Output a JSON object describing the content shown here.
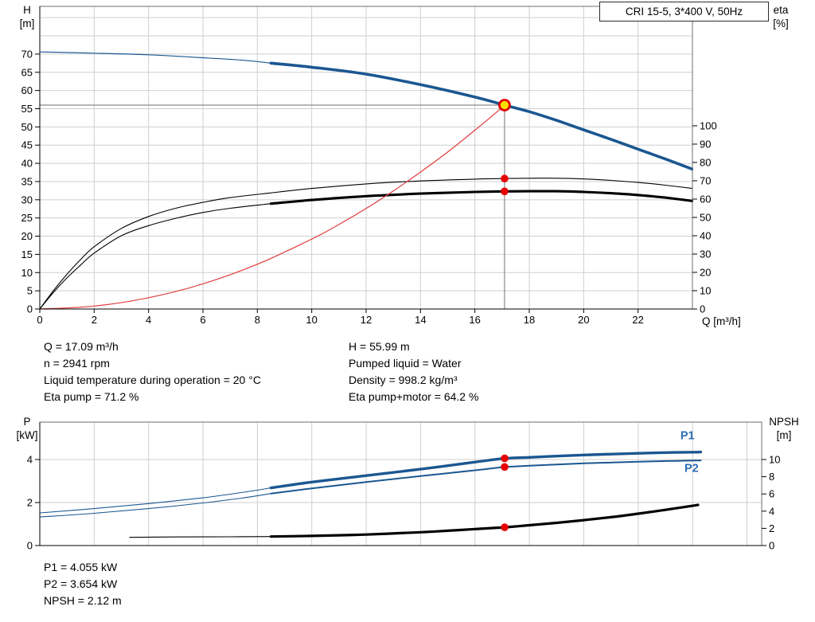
{
  "title_box": {
    "label": "CRI 15-5, 3*400 V, 50Hz"
  },
  "info_top_left": [
    "Q = 17.09 m³/h",
    "n = 2941 rpm",
    "Liquid temperature during operation = 20 °C",
    "Eta pump = 71.2 %"
  ],
  "info_top_right": [
    "H = 55.99 m",
    "Pumped liquid = Water",
    "Density = 998.2 kg/m³",
    "Eta pump+motor = 64.2 %"
  ],
  "info_bottom": [
    "P1 = 4.055 kW",
    "P2 = 3.654 kW",
    "NPSH = 2.12 m"
  ],
  "duty_point": {
    "q": 17.09,
    "h": 55.99,
    "eta_pump": 71.2,
    "eta_pump_motor": 64.2,
    "p1": 4.055,
    "p2": 3.654,
    "npsh": 2.12
  },
  "colors": {
    "curve_blue": "#1b5791",
    "label_blue": "#2e6db4",
    "curve_black": "#000000",
    "system_red": "#e03c3c",
    "dot_red": "#e60000",
    "duty_fill": "#ffdf00",
    "duty_ring": "#e00000",
    "grid": "#cfcfcf",
    "frame": "#6e6e6e",
    "crosshair": "#8a8a8a"
  },
  "chart_data": [
    {
      "id": "qh-eta",
      "type": "line",
      "x_axis": {
        "label": "Q [m³/h]",
        "min": 0,
        "max": 24,
        "ticks": [
          0,
          2,
          4,
          6,
          8,
          10,
          12,
          14,
          16,
          18,
          20,
          22
        ],
        "grid": [
          2,
          4,
          6,
          8,
          10,
          12,
          14,
          16,
          18,
          20,
          22
        ]
      },
      "y_left": {
        "label": "H",
        "unit": "[m]",
        "min": 0,
        "max": 83.1,
        "ticks": [
          0,
          5,
          10,
          15,
          20,
          25,
          30,
          35,
          40,
          45,
          50,
          55,
          60,
          65,
          70
        ],
        "grid": [
          5,
          10,
          15,
          20,
          25,
          30,
          35,
          40,
          45,
          50,
          55,
          60,
          65,
          70,
          75,
          80
        ]
      },
      "y_right": {
        "label": "eta",
        "unit": "[%]",
        "min": 0,
        "max": 165.2,
        "ticks": [
          0,
          10,
          20,
          30,
          40,
          50,
          60,
          70,
          80,
          90,
          100
        ],
        "grid": []
      },
      "crosshair": {
        "x": 17.09,
        "value": 55.99
      },
      "series": [
        {
          "name": "head-curve-thin",
          "axis": "left",
          "color": "#1b5791",
          "width": 1.2,
          "points": [
            [
              0,
              70.6
            ],
            [
              2,
              70.25
            ],
            [
              4,
              69.8
            ],
            [
              6,
              69.0
            ],
            [
              7.5,
              68.3
            ],
            [
              8.5,
              67.5
            ]
          ]
        },
        {
          "name": "head-curve",
          "axis": "left",
          "color": "#1b5791",
          "width": 3.6,
          "points": [
            [
              8.5,
              67.5
            ],
            [
              10,
              66.4
            ],
            [
              12,
              64.5
            ],
            [
              14,
              61.6
            ],
            [
              16,
              58.2
            ],
            [
              17.09,
              56.0
            ],
            [
              18,
              54.2
            ],
            [
              19,
              51.8
            ],
            [
              20,
              49.2
            ],
            [
              21,
              46.6
            ],
            [
              22,
              43.9
            ],
            [
              23,
              41.2
            ],
            [
              24,
              38.4
            ]
          ]
        },
        {
          "name": "eta-pump-curve",
          "axis": "right",
          "color": "#000000",
          "width": 1.1,
          "points": [
            [
              0,
              0
            ],
            [
              0.5,
              10
            ],
            [
              1,
              19
            ],
            [
              1.5,
              27
            ],
            [
              2,
              34
            ],
            [
              3,
              44
            ],
            [
              4,
              50.5
            ],
            [
              5,
              55
            ],
            [
              6,
              58.2
            ],
            [
              7,
              60.8
            ],
            [
              8.5,
              63.4
            ],
            [
              10,
              65.8
            ],
            [
              12,
              68.3
            ],
            [
              14,
              69.9
            ],
            [
              16,
              70.9
            ],
            [
              17.09,
              71.2
            ],
            [
              18,
              71.4
            ],
            [
              19,
              71.4
            ],
            [
              20,
              71.0
            ],
            [
              21,
              70.2
            ],
            [
              22,
              69.1
            ],
            [
              23,
              67.6
            ],
            [
              24,
              65.8
            ]
          ]
        },
        {
          "name": "eta-pump-motor-thin",
          "axis": "right",
          "color": "#000000",
          "width": 1.1,
          "points": [
            [
              0,
              0
            ],
            [
              0.5,
              9
            ],
            [
              1,
              17
            ],
            [
              1.5,
              24
            ],
            [
              2,
              30.5
            ],
            [
              3,
              40
            ],
            [
              4,
              45.5
            ],
            [
              5,
              49.5
            ],
            [
              6,
              52.7
            ],
            [
              7,
              55
            ],
            [
              8.5,
              57.5
            ]
          ]
        },
        {
          "name": "eta-pump-motor-curve",
          "axis": "right",
          "color": "#000000",
          "width": 3.1,
          "points": [
            [
              8.5,
              57.5
            ],
            [
              10,
              59.5
            ],
            [
              12,
              61.6
            ],
            [
              14,
              63.0
            ],
            [
              16,
              63.9
            ],
            [
              17.09,
              64.2
            ],
            [
              18,
              64.3
            ],
            [
              19,
              64.3
            ],
            [
              20,
              63.9
            ],
            [
              21,
              63.2
            ],
            [
              22,
              62.2
            ],
            [
              23,
              60.8
            ],
            [
              24,
              59.0
            ]
          ]
        },
        {
          "name": "system-curve",
          "axis": "left",
          "color": "#e03c3c",
          "width": 1.2,
          "points": [
            [
              0,
              0
            ],
            [
              2,
              0.8
            ],
            [
              4,
              3.1
            ],
            [
              6,
              6.9
            ],
            [
              8,
              12.3
            ],
            [
              10,
              19.2
            ],
            [
              11,
              23.2
            ],
            [
              12,
              27.6
            ],
            [
              13,
              32.4
            ],
            [
              14,
              37.6
            ],
            [
              15,
              43.1
            ],
            [
              16,
              49.1
            ],
            [
              16.6,
              52.8
            ],
            [
              17.09,
              55.99
            ]
          ]
        }
      ],
      "markers": [
        {
          "name": "duty-point",
          "x": 17.09,
          "value": 55.99,
          "axis": "left",
          "r": 6.5,
          "fill": "#ffdf00",
          "stroke": "#e00000",
          "stroke_width": 2.8
        },
        {
          "name": "eta-pump-duty-dot",
          "x": 17.09,
          "value": 71.2,
          "axis": "right",
          "r": 4.8,
          "fill": "#e60000"
        },
        {
          "name": "eta-pump-motor-duty-dot",
          "x": 17.09,
          "value": 64.2,
          "axis": "right",
          "r": 4.8,
          "fill": "#e60000"
        }
      ],
      "curve_labels": []
    },
    {
      "id": "power-npsh",
      "type": "line",
      "x_axis": {
        "label": "",
        "min": 0,
        "max": 26.54,
        "ticks": [],
        "grid": [
          2,
          4,
          6,
          8,
          10,
          12,
          14,
          16,
          18,
          20,
          22,
          24,
          26
        ]
      },
      "y_left": {
        "label": "P",
        "unit": "[kW]",
        "min": 0,
        "max": 5.74,
        "ticks": [
          0,
          2,
          4
        ],
        "grid": [
          2,
          4
        ]
      },
      "y_right": {
        "label": "NPSH",
        "unit": "[m]",
        "min": 0,
        "max": 14.35,
        "ticks": [
          0,
          2,
          4,
          6,
          8,
          10
        ],
        "grid": []
      },
      "series": [
        {
          "name": "p1-curve-thin",
          "axis": "left",
          "color": "#1b5791",
          "width": 1.1,
          "points": [
            [
              0,
              1.52
            ],
            [
              2,
              1.72
            ],
            [
              4,
              1.95
            ],
            [
              6,
              2.22
            ],
            [
              7.5,
              2.48
            ],
            [
              8.5,
              2.68
            ]
          ]
        },
        {
          "name": "p1-curve",
          "axis": "left",
          "color": "#1b5791",
          "width": 3.4,
          "points": [
            [
              8.5,
              2.68
            ],
            [
              10,
              2.95
            ],
            [
              12,
              3.25
            ],
            [
              14,
              3.55
            ],
            [
              16,
              3.88
            ],
            [
              17.09,
              4.05
            ],
            [
              18,
              4.1
            ],
            [
              19,
              4.16
            ],
            [
              20,
              4.21
            ],
            [
              21,
              4.25
            ],
            [
              22,
              4.29
            ],
            [
              23,
              4.32
            ],
            [
              24,
              4.34
            ],
            [
              24.3,
              4.35
            ]
          ]
        },
        {
          "name": "p2-curve-thin",
          "axis": "left",
          "color": "#1b5791",
          "width": 1.1,
          "points": [
            [
              0,
              1.33
            ],
            [
              2,
              1.5
            ],
            [
              4,
              1.72
            ],
            [
              6,
              1.98
            ],
            [
              7.5,
              2.22
            ],
            [
              8.5,
              2.42
            ]
          ]
        },
        {
          "name": "p2-curve",
          "axis": "left",
          "color": "#1b5791",
          "width": 2.0,
          "points": [
            [
              8.5,
              2.42
            ],
            [
              10,
              2.66
            ],
            [
              12,
              2.95
            ],
            [
              14,
              3.23
            ],
            [
              16,
              3.5
            ],
            [
              17.09,
              3.65
            ],
            [
              18,
              3.71
            ],
            [
              19,
              3.77
            ],
            [
              20,
              3.82
            ],
            [
              21,
              3.86
            ],
            [
              22,
              3.9
            ],
            [
              23,
              3.93
            ],
            [
              24,
              3.95
            ],
            [
              24.3,
              3.96
            ]
          ]
        },
        {
          "name": "npsh-curve-thin",
          "axis": "right",
          "color": "#000000",
          "width": 1.1,
          "points": [
            [
              3.3,
              0.95
            ],
            [
              5,
              1.0
            ],
            [
              7,
              1.02
            ],
            [
              8.5,
              1.05
            ]
          ]
        },
        {
          "name": "npsh-curve",
          "axis": "right",
          "color": "#000000",
          "width": 3.2,
          "points": [
            [
              8.5,
              1.05
            ],
            [
              10,
              1.12
            ],
            [
              12,
              1.28
            ],
            [
              14,
              1.55
            ],
            [
              15,
              1.72
            ],
            [
              16,
              1.92
            ],
            [
              17.09,
              2.12
            ],
            [
              18,
              2.36
            ],
            [
              19,
              2.64
            ],
            [
              20,
              2.95
            ],
            [
              21,
              3.3
            ],
            [
              22,
              3.7
            ],
            [
              23,
              4.15
            ],
            [
              24,
              4.62
            ],
            [
              24.2,
              4.72
            ]
          ]
        }
      ],
      "markers": [
        {
          "name": "p1-duty-dot",
          "x": 17.09,
          "value": 4.055,
          "axis": "left",
          "r": 4.8,
          "fill": "#e60000"
        },
        {
          "name": "p2-duty-dot",
          "x": 17.09,
          "value": 3.654,
          "axis": "left",
          "r": 4.8,
          "fill": "#e60000"
        },
        {
          "name": "npsh-duty-dot",
          "x": 17.09,
          "value": 2.12,
          "axis": "right",
          "r": 4.8,
          "fill": "#e60000"
        }
      ],
      "curve_labels": [
        {
          "text": "P1",
          "x": 23.55,
          "value": 4.95,
          "axis": "left",
          "color": "#2e6db4"
        },
        {
          "text": "P2",
          "x": 23.7,
          "value": 3.42,
          "axis": "left",
          "color": "#2e6db4"
        }
      ]
    }
  ]
}
